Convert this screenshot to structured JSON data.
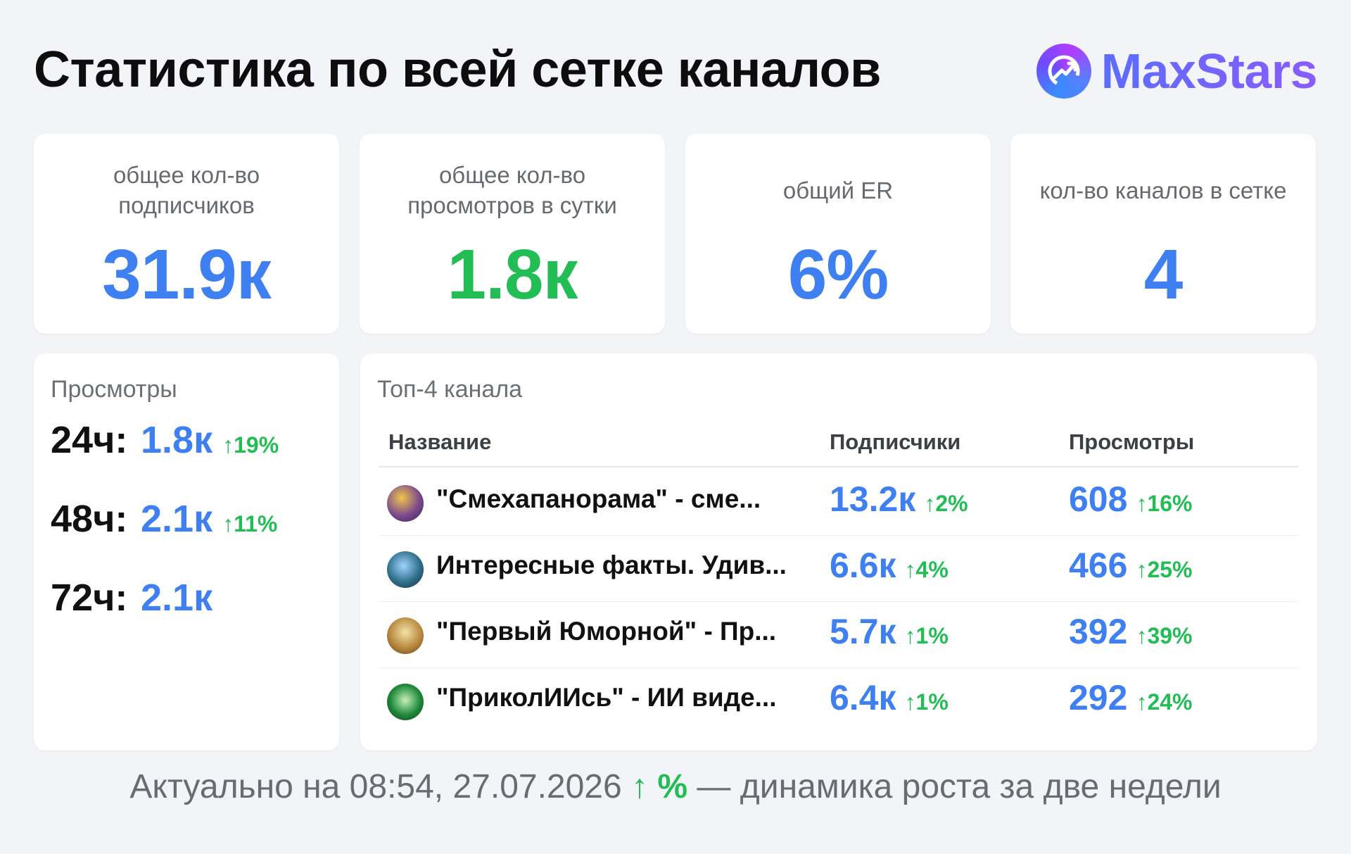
{
  "header": {
    "title": "Статистика по всей сетке каналов",
    "brand_name": "MaxStars",
    "brand_icon": "chart-up-icon"
  },
  "stats": [
    {
      "label": "общее кол-во подписчиков",
      "value": "31.9к",
      "color": "#3e7ff2"
    },
    {
      "label": "общее кол-во просмотров в сутки",
      "value": "1.8к",
      "color": "#22bd55"
    },
    {
      "label": "общий ER",
      "value": "6%",
      "color": "#3e7ff2"
    },
    {
      "label": "кол-во каналов в сетке",
      "value": "4",
      "color": "#3e7ff2"
    }
  ],
  "views": {
    "title": "Просмотры",
    "rows": [
      {
        "period": "24ч:",
        "value": "1.8к",
        "delta": "↑19%"
      },
      {
        "period": "48ч:",
        "value": "2.1к",
        "delta": "↑11%"
      },
      {
        "period": "72ч:",
        "value": "2.1к",
        "delta": ""
      }
    ]
  },
  "top": {
    "title": "Топ-4 канала",
    "columns": {
      "name": "Название",
      "subscribers": "Подписчики",
      "views": "Просмотры"
    },
    "rows": [
      {
        "name": "\"Смехапанорама\" - сме...",
        "subs": "13.2к",
        "subs_delta": "↑2%",
        "views": "608",
        "views_delta": "↑16%",
        "avatar_color": "#7b4a8f"
      },
      {
        "name": "Интересные факты. Удив...",
        "subs": "6.6к",
        "subs_delta": "↑4%",
        "views": "466",
        "views_delta": "↑25%",
        "avatar_color": "#2f6f8a"
      },
      {
        "name": "\"Первый Юморной\" - Пр...",
        "subs": "5.7к",
        "subs_delta": "↑1%",
        "views": "392",
        "views_delta": "↑39%",
        "avatar_color": "#b9893e"
      },
      {
        "name": "\"ПриколИИсь\" - ИИ виде...",
        "subs": "6.4к",
        "subs_delta": "↑1%",
        "views": "292",
        "views_delta": "↑24%",
        "avatar_color": "#1f8a3a"
      }
    ]
  },
  "footer": {
    "prefix": "Актуально на 08:54, 27.07.2026",
    "marker": "↑ %",
    "suffix": "— динамика роста за две недели"
  }
}
